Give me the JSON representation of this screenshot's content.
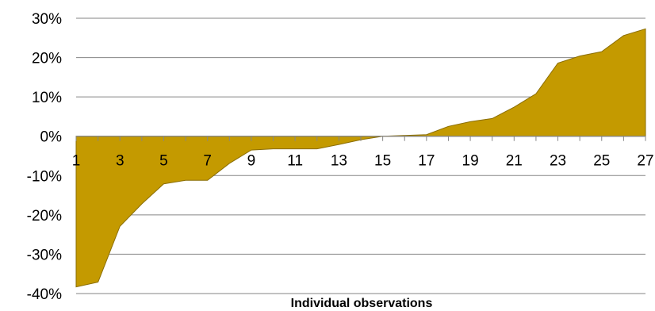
{
  "chart_data": {
    "type": "area",
    "title": "",
    "xlabel": "Individual observations",
    "ylabel": "",
    "x": [
      1,
      2,
      3,
      4,
      5,
      6,
      7,
      8,
      9,
      10,
      11,
      12,
      13,
      14,
      15,
      16,
      17,
      18,
      19,
      20,
      21,
      22,
      23,
      24,
      25,
      26,
      27
    ],
    "series": [
      {
        "name": "",
        "values": [
          -38.3,
          -37.1,
          -22.9,
          -17.2,
          -12.1,
          -11.2,
          -11.2,
          -6.9,
          -3.5,
          -3.2,
          -3.2,
          -3.2,
          -2.1,
          -0.9,
          0.0,
          0.2,
          0.4,
          2.5,
          3.7,
          4.5,
          7.4,
          10.8,
          18.6,
          20.4,
          21.5,
          25.6,
          27.3
        ]
      }
    ],
    "x_tick_labels": [
      "1",
      "3",
      "5",
      "7",
      "9",
      "11",
      "13",
      "15",
      "17",
      "19",
      "21",
      "23",
      "25",
      "27"
    ],
    "y_tick_labels": [
      "30%",
      "20%",
      "10%",
      "0%",
      "-10%",
      "-20%",
      "-30%",
      "-40%"
    ],
    "y_ticks": [
      30,
      20,
      10,
      0,
      -10,
      -20,
      -30,
      -40
    ],
    "ylim": [
      -40,
      30
    ],
    "grid": "horizontal",
    "legend": "none",
    "fill_color": "#C49A00",
    "stroke_color": "#8A6D00",
    "grid_color": "#868686"
  }
}
